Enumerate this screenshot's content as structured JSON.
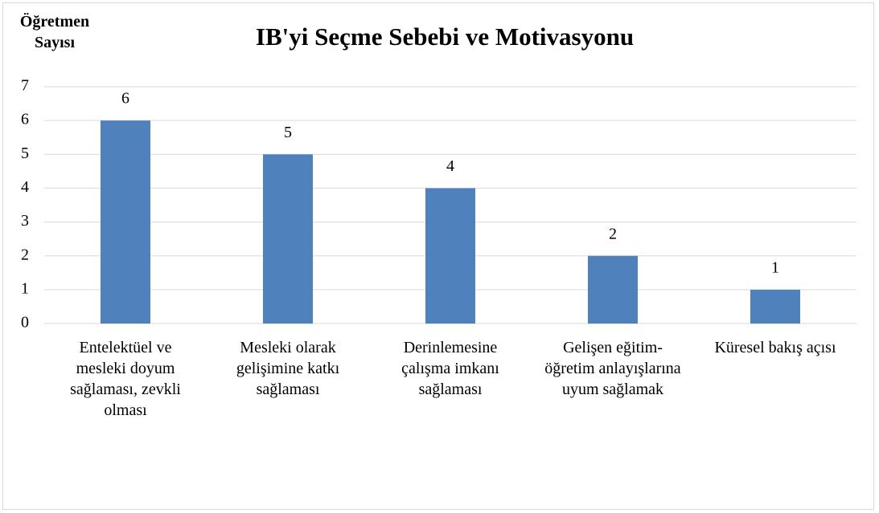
{
  "chart_data": {
    "type": "bar",
    "title": "IB'yi Seçme Sebebi ve Motivasyonu",
    "y_label": "Öğretmen Sayısı",
    "categories": [
      "Entelektüel ve mesleki doyum sağlaması, zevkli olması",
      "Mesleki olarak gelişimine katkı sağlaması",
      "Derinlemesine çalışma imkanı sağlaması",
      "Gelişen eğitim-öğretim anlayışlarına uyum sağlamak",
      "Küresel bakış açısı"
    ],
    "values": [
      6,
      5,
      4,
      2,
      1
    ],
    "color": "#4f81bd",
    "ylim": [
      0,
      7
    ],
    "yticks": [
      0,
      1,
      2,
      3,
      4,
      5,
      6,
      7
    ],
    "grid": true
  }
}
